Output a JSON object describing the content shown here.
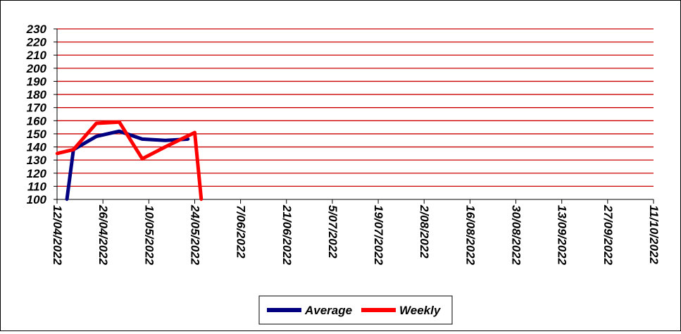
{
  "chart_data": {
    "type": "line",
    "title": "",
    "xlabel": "",
    "ylabel": "",
    "ylim": [
      100,
      230
    ],
    "ytick_step": 10,
    "xlim": [
      "2022-04-12",
      "2022-10-11"
    ],
    "x_tick_labels": [
      "12/04/2022",
      "26/04/2022",
      "10/05/2022",
      "24/05/2022",
      "7/06/2022",
      "21/06/2022",
      "5/07/2022",
      "19/07/2022",
      "2/08/2022",
      "16/08/2022",
      "30/08/2022",
      "13/09/2022",
      "27/09/2022",
      "11/10/2022"
    ],
    "x_tick_dates": [
      "2022-04-12",
      "2022-04-26",
      "2022-05-10",
      "2022-05-24",
      "2022-06-07",
      "2022-06-21",
      "2022-07-05",
      "2022-07-19",
      "2022-08-02",
      "2022-08-16",
      "2022-08-30",
      "2022-09-13",
      "2022-09-27",
      "2022-10-11"
    ],
    "grid": true,
    "grid_color": "#cc0000",
    "legend_position": "bottom-center",
    "series": [
      {
        "name": "Average",
        "color": "#000080",
        "points": [
          {
            "x": "2022-04-15",
            "y": 100
          },
          {
            "x": "2022-04-17",
            "y": 138
          },
          {
            "x": "2022-04-24",
            "y": 148
          },
          {
            "x": "2022-05-01",
            "y": 152
          },
          {
            "x": "2022-05-08",
            "y": 146
          },
          {
            "x": "2022-05-15",
            "y": 145
          },
          {
            "x": "2022-05-22",
            "y": 146
          }
        ]
      },
      {
        "name": "Weekly",
        "color": "#ff0000",
        "points": [
          {
            "x": "2022-04-12",
            "y": 135
          },
          {
            "x": "2022-04-17",
            "y": 138
          },
          {
            "x": "2022-04-24",
            "y": 158
          },
          {
            "x": "2022-05-01",
            "y": 159
          },
          {
            "x": "2022-05-08",
            "y": 131
          },
          {
            "x": "2022-05-15",
            "y": 140
          },
          {
            "x": "2022-05-24",
            "y": 151
          },
          {
            "x": "2022-05-26",
            "y": 100
          }
        ]
      }
    ]
  }
}
